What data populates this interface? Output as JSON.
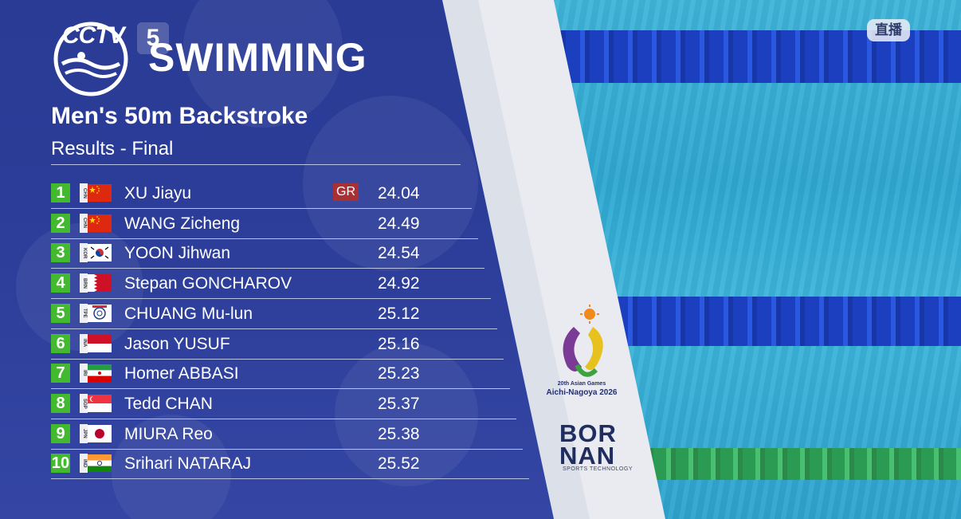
{
  "broadcast": {
    "logo_text": "CCTV",
    "channel_number": "5",
    "live_label": "直播"
  },
  "header": {
    "sport": "SWIMMING",
    "event": "Men's 50m Backstroke",
    "subtitle": "Results - Final"
  },
  "results": [
    {
      "rank": "1",
      "noc": "CHN",
      "name": "XU Jiayu",
      "record": "GR",
      "time": "24.04"
    },
    {
      "rank": "2",
      "noc": "CHN",
      "name": "WANG Zicheng",
      "record": "",
      "time": "24.49"
    },
    {
      "rank": "3",
      "noc": "KOR",
      "name": "YOON Jihwan",
      "record": "",
      "time": "24.54"
    },
    {
      "rank": "4",
      "noc": "BRN",
      "name": "Stepan GONCHAROV",
      "record": "",
      "time": "24.92"
    },
    {
      "rank": "5",
      "noc": "TPE",
      "name": "CHUANG Mu-lun",
      "record": "",
      "time": "25.12"
    },
    {
      "rank": "6",
      "noc": "INA",
      "name": "Jason YUSUF",
      "record": "",
      "time": "25.16"
    },
    {
      "rank": "7",
      "noc": "IRI",
      "name": "Homer ABBASI",
      "record": "",
      "time": "25.23"
    },
    {
      "rank": "8",
      "noc": "SGP",
      "name": "Tedd CHAN",
      "record": "",
      "time": "25.37"
    },
    {
      "rank": "9",
      "noc": "JPN",
      "name": "MIURA Reo",
      "record": "",
      "time": "25.38"
    },
    {
      "rank": "10",
      "noc": "IND",
      "name": "Srihari NATARAJ",
      "record": "",
      "time": "25.52"
    }
  ],
  "sponsors": {
    "games_line1": "20th Asian Games",
    "games_line2": "Aichi-Nagoya 2026",
    "timing_brand_line1": "BOR",
    "timing_brand_line2": "NAN",
    "timing_brand_sub": "SPORTS TECHNOLOGY"
  },
  "colors": {
    "panel": "#2b3d98",
    "rank_badge": "#42b92e",
    "record_badge": "#a83035",
    "pool": "#2fa8d2"
  }
}
